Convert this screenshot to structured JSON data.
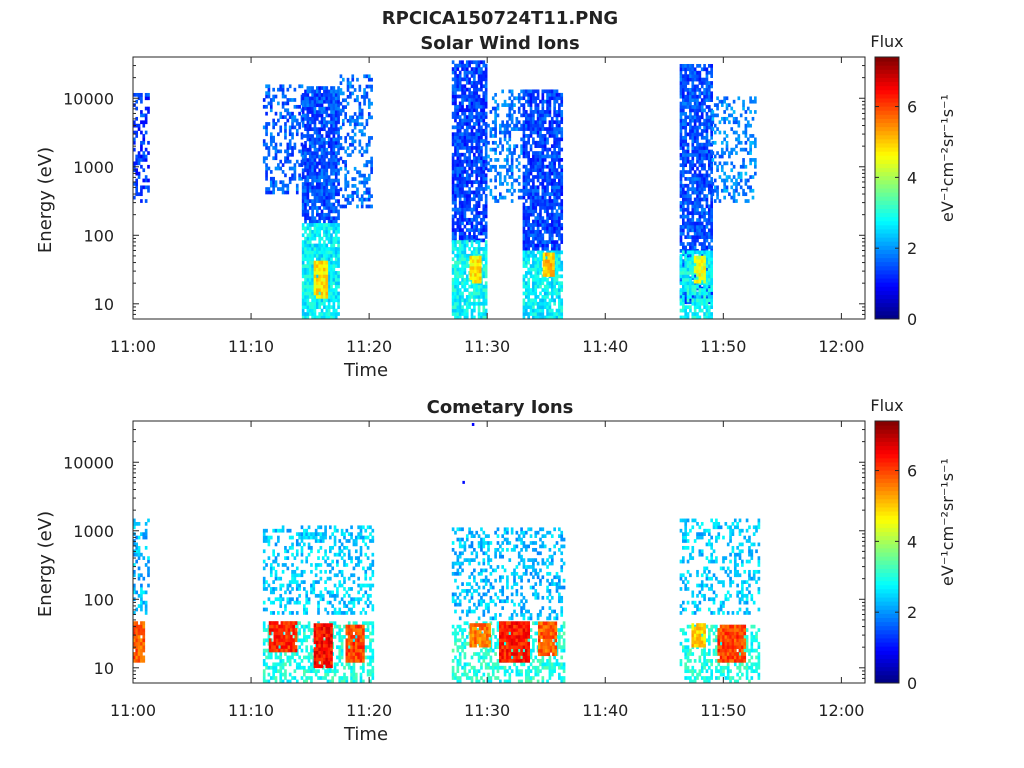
{
  "figure_title": "RPCICA150724T11.PNG",
  "colors": {
    "colormap": "jet",
    "axis": "#262626",
    "background": "#ffffff"
  },
  "chart_data": [
    {
      "type": "heatmap",
      "title": "Solar Wind Ions",
      "xlabel": "Time",
      "ylabel": "Energy (eV)",
      "xlim": [
        "11:00",
        "12:02"
      ],
      "ylim": [
        6,
        40000
      ],
      "yscale": "log",
      "xticks": [
        "11:00",
        "11:10",
        "11:20",
        "11:30",
        "11:40",
        "11:50",
        "12:00"
      ],
      "yticks": [
        {
          "value": 10,
          "label": "10"
        },
        {
          "value": 100,
          "label": "100"
        },
        {
          "value": 1000,
          "label": "1000"
        },
        {
          "value": 10000,
          "label": "10000"
        }
      ],
      "colorbar": {
        "title": "Flux",
        "label": "eV⁻¹cm⁻²sr⁻¹s⁻¹",
        "range": [
          0,
          7.4
        ],
        "ticks": [
          "0",
          "2",
          "4",
          "6"
        ]
      },
      "blobs": [
        {
          "t0": 0.0,
          "t1": 1.3,
          "emin": 300,
          "emax": 11000,
          "level": 1.3,
          "density": 0.45
        },
        {
          "t0": 11.0,
          "t1": 14.3,
          "emin": 400,
          "emax": 15000,
          "level": 1.6,
          "density": 0.4
        },
        {
          "t0": 14.3,
          "t1": 17.5,
          "emin": 150,
          "emax": 14000,
          "level": 1.5,
          "density": 0.85
        },
        {
          "t0": 14.3,
          "t1": 17.5,
          "emin": 6,
          "emax": 150,
          "level": 2.7,
          "density": 0.9
        },
        {
          "t0": 15.3,
          "t1": 16.5,
          "emin": 12,
          "emax": 40,
          "level": 4.8,
          "density": 0.95
        },
        {
          "t0": 17.5,
          "t1": 20.3,
          "emin": 250,
          "emax": 20000,
          "level": 1.7,
          "density": 0.35
        },
        {
          "t0": 27.0,
          "t1": 30.0,
          "emin": 80,
          "emax": 35000,
          "level": 1.4,
          "density": 0.8
        },
        {
          "t0": 27.0,
          "t1": 30.0,
          "emin": 6,
          "emax": 80,
          "level": 2.8,
          "density": 0.8
        },
        {
          "t0": 28.5,
          "t1": 29.5,
          "emin": 20,
          "emax": 50,
          "level": 4.8,
          "density": 0.95
        },
        {
          "t0": 30.0,
          "t1": 33.0,
          "emin": 300,
          "emax": 13000,
          "level": 1.8,
          "density": 0.35
        },
        {
          "t0": 33.0,
          "t1": 36.3,
          "emin": 60,
          "emax": 12000,
          "level": 1.4,
          "density": 0.8
        },
        {
          "t0": 33.0,
          "t1": 36.3,
          "emin": 6,
          "emax": 60,
          "level": 2.7,
          "density": 0.8
        },
        {
          "t0": 34.7,
          "t1": 35.6,
          "emin": 25,
          "emax": 50,
          "level": 5.0,
          "density": 0.95
        },
        {
          "t0": 46.3,
          "t1": 49.0,
          "emin": 10,
          "emax": 30000,
          "level": 1.5,
          "density": 0.8
        },
        {
          "t0": 46.3,
          "t1": 49.0,
          "emin": 6,
          "emax": 60,
          "level": 2.8,
          "density": 0.8
        },
        {
          "t0": 47.5,
          "t1": 48.5,
          "emin": 20,
          "emax": 50,
          "level": 4.5,
          "density": 0.9
        },
        {
          "t0": 49.0,
          "t1": 52.8,
          "emin": 300,
          "emax": 10000,
          "level": 1.9,
          "density": 0.35
        }
      ]
    },
    {
      "type": "heatmap",
      "title": "Cometary Ions",
      "xlabel": "Time",
      "ylabel": "Energy (eV)",
      "xlim": [
        "11:00",
        "12:02"
      ],
      "ylim": [
        6,
        40000
      ],
      "yscale": "log",
      "xticks": [
        "11:00",
        "11:10",
        "11:20",
        "11:30",
        "11:40",
        "11:50",
        "12:00"
      ],
      "yticks": [
        {
          "value": 10,
          "label": "10"
        },
        {
          "value": 100,
          "label": "100"
        },
        {
          "value": 1000,
          "label": "1000"
        },
        {
          "value": 10000,
          "label": "10000"
        }
      ],
      "colorbar": {
        "title": "Flux",
        "label": "eV⁻¹cm⁻²sr⁻¹s⁻¹",
        "range": [
          0,
          7.4
        ],
        "ticks": [
          "0",
          "2",
          "4",
          "6"
        ]
      },
      "blobs": [
        {
          "t0": 0.0,
          "t1": 1.3,
          "emin": 60,
          "emax": 1500,
          "level": 2.3,
          "density": 0.35
        },
        {
          "t0": 0.0,
          "t1": 1.0,
          "emin": 12,
          "emax": 45,
          "level": 5.8,
          "density": 0.95
        },
        {
          "t0": 11.0,
          "t1": 20.3,
          "emin": 60,
          "emax": 1100,
          "level": 2.4,
          "density": 0.35
        },
        {
          "t0": 11.0,
          "t1": 20.3,
          "emin": 6,
          "emax": 45,
          "level": 3.0,
          "density": 0.5
        },
        {
          "t0": 11.5,
          "t1": 13.8,
          "emin": 17,
          "emax": 45,
          "level": 6.2,
          "density": 0.95
        },
        {
          "t0": 15.3,
          "t1": 16.8,
          "emin": 10,
          "emax": 40,
          "level": 6.4,
          "density": 0.95
        },
        {
          "t0": 18.0,
          "t1": 19.5,
          "emin": 12,
          "emax": 40,
          "level": 6.0,
          "density": 0.95
        },
        {
          "t0": 27.0,
          "t1": 36.5,
          "emin": 50,
          "emax": 1000,
          "level": 2.3,
          "density": 0.3
        },
        {
          "t0": 27.0,
          "t1": 36.5,
          "emin": 6,
          "emax": 45,
          "level": 3.0,
          "density": 0.5
        },
        {
          "t0": 28.5,
          "t1": 30.2,
          "emin": 20,
          "emax": 40,
          "level": 5.6,
          "density": 0.95
        },
        {
          "t0": 31.0,
          "t1": 33.5,
          "emin": 12,
          "emax": 45,
          "level": 6.3,
          "density": 0.95
        },
        {
          "t0": 34.3,
          "t1": 35.8,
          "emin": 15,
          "emax": 45,
          "level": 5.8,
          "density": 0.95
        },
        {
          "t0": 46.3,
          "t1": 53.0,
          "emin": 60,
          "emax": 1400,
          "level": 2.4,
          "density": 0.3
        },
        {
          "t0": 46.3,
          "t1": 53.0,
          "emin": 6,
          "emax": 40,
          "level": 3.0,
          "density": 0.45
        },
        {
          "t0": 47.3,
          "t1": 48.5,
          "emin": 20,
          "emax": 40,
          "level": 5.0,
          "density": 0.95
        },
        {
          "t0": 49.5,
          "t1": 51.8,
          "emin": 12,
          "emax": 40,
          "level": 6.0,
          "density": 0.95
        }
      ],
      "outliers": [
        {
          "t": 28.7,
          "e": 35000,
          "level": 0.9
        },
        {
          "t": 27.9,
          "e": 5000,
          "level": 1.0
        }
      ]
    }
  ]
}
